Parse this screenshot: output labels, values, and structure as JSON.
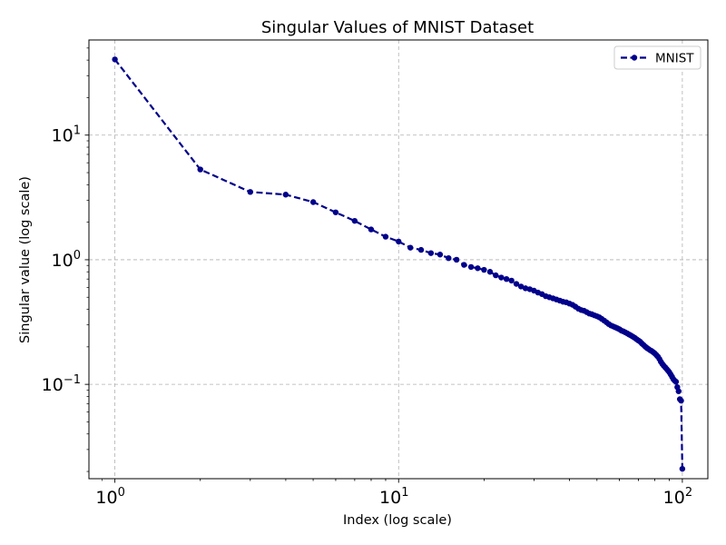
{
  "chart_data": {
    "type": "line",
    "title": "Singular Values of MNIST Dataset",
    "xlabel": "Index (log scale)",
    "ylabel": "Singular value (log scale)",
    "xscale": "log",
    "yscale": "log",
    "xlim": [
      0.81,
      123
    ],
    "ylim": [
      0.0175,
      58
    ],
    "grid": true,
    "legend_position": "top-right",
    "x_ticks": [
      {
        "value": 1,
        "base": "10",
        "exp": "0"
      },
      {
        "value": 10,
        "base": "10",
        "exp": "1"
      },
      {
        "value": 100,
        "base": "10",
        "exp": "2"
      }
    ],
    "y_ticks": [
      {
        "value": 0.1,
        "base": "10",
        "exp": "−1"
      },
      {
        "value": 1,
        "base": "10",
        "exp": "0"
      },
      {
        "value": 10,
        "base": "10",
        "exp": "1"
      }
    ],
    "series": [
      {
        "name": "MNIST",
        "color": "#00008b",
        "line_style": "dashed",
        "marker": "circle",
        "x": [
          1,
          2,
          3,
          4,
          5,
          6,
          7,
          8,
          9,
          10,
          11,
          12,
          13,
          14,
          15,
          16,
          17,
          18,
          19,
          20,
          21,
          22,
          23,
          24,
          25,
          26,
          27,
          28,
          29,
          30,
          31,
          32,
          33,
          34,
          35,
          36,
          37,
          38,
          39,
          40,
          41,
          42,
          43,
          44,
          45,
          46,
          47,
          48,
          49,
          50,
          51,
          52,
          53,
          54,
          55,
          56,
          57,
          58,
          59,
          60,
          61,
          62,
          63,
          64,
          65,
          66,
          67,
          68,
          69,
          70,
          71,
          72,
          73,
          74,
          75,
          76,
          77,
          78,
          79,
          80,
          81,
          82,
          83,
          84,
          85,
          86,
          87,
          88,
          89,
          90,
          91,
          92,
          93,
          94,
          95,
          96,
          97,
          98,
          99,
          100
        ],
        "values": [
          40.5,
          5.3,
          3.5,
          3.33,
          2.9,
          2.4,
          2.05,
          1.75,
          1.53,
          1.4,
          1.25,
          1.2,
          1.13,
          1.1,
          1.03,
          1.0,
          0.91,
          0.875,
          0.855,
          0.83,
          0.8,
          0.75,
          0.72,
          0.7,
          0.68,
          0.64,
          0.61,
          0.59,
          0.58,
          0.565,
          0.545,
          0.53,
          0.51,
          0.5,
          0.49,
          0.48,
          0.47,
          0.46,
          0.455,
          0.445,
          0.435,
          0.42,
          0.405,
          0.395,
          0.39,
          0.38,
          0.37,
          0.365,
          0.358,
          0.352,
          0.345,
          0.335,
          0.325,
          0.315,
          0.305,
          0.297,
          0.292,
          0.287,
          0.282,
          0.277,
          0.27,
          0.266,
          0.261,
          0.256,
          0.251,
          0.246,
          0.241,
          0.236,
          0.23,
          0.225,
          0.22,
          0.213,
          0.207,
          0.201,
          0.196,
          0.192,
          0.188,
          0.185,
          0.181,
          0.177,
          0.172,
          0.167,
          0.16,
          0.152,
          0.146,
          0.141,
          0.137,
          0.133,
          0.129,
          0.125,
          0.12,
          0.115,
          0.11,
          0.107,
          0.105,
          0.095,
          0.088,
          0.076,
          0.074,
          0.021
        ]
      }
    ]
  }
}
